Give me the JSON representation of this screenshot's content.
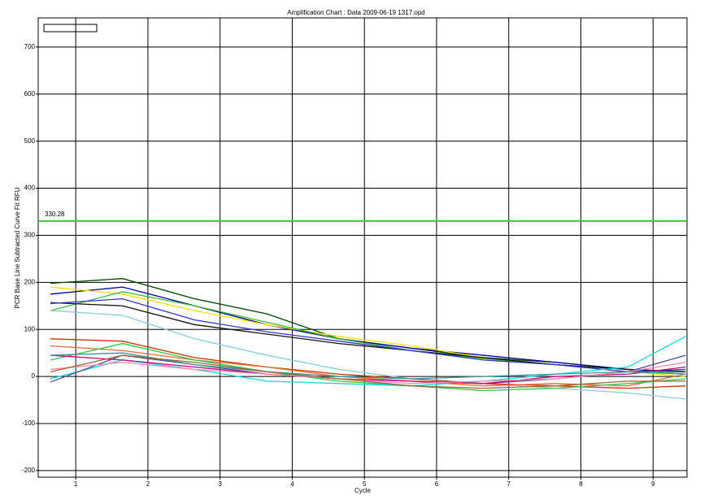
{
  "chart_data": {
    "type": "line",
    "title": "Amplification Chart : Data 2009-06-19 1317.opd",
    "x_label": "Cycle",
    "y_label": "PCR Base Line Subtracted Curve Fit RFU",
    "x": [
      0.65,
      1.65,
      2.65,
      3.65,
      4.65,
      5.65,
      6.65,
      7.65,
      8.65,
      9.45
    ],
    "xlim": [
      0.48,
      9.47
    ],
    "ylim": [
      -214,
      762
    ],
    "xticks": [
      1,
      2,
      3,
      4,
      5,
      6,
      7,
      8,
      9
    ],
    "yticks": [
      -200,
      -100,
      0,
      100,
      200,
      300,
      400,
      500,
      600,
      700
    ],
    "grid": true,
    "grid_color": "#000000",
    "threshold": 330.28,
    "threshold_color": "#33cc33",
    "series": [
      {
        "color": "#004400",
        "values": [
          198,
          208,
          165,
          133,
          80,
          60,
          40,
          30,
          15,
          5
        ]
      },
      {
        "color": "#000099",
        "values": [
          175,
          190,
          150,
          110,
          80,
          60,
          45,
          30,
          15,
          10
        ]
      },
      {
        "color": "#ffdd00",
        "values": [
          190,
          175,
          140,
          110,
          85,
          65,
          40,
          25,
          10,
          0
        ]
      },
      {
        "color": "#33bb33",
        "values": [
          140,
          180,
          150,
          115,
          80,
          55,
          38,
          25,
          15,
          5
        ]
      },
      {
        "color": "#111111",
        "values": [
          157,
          150,
          110,
          90,
          70,
          55,
          40,
          25,
          15,
          10
        ]
      },
      {
        "color": "#3333cc",
        "values": [
          155,
          165,
          120,
          95,
          75,
          55,
          35,
          25,
          10,
          15
        ]
      },
      {
        "color": "#88ccdd",
        "values": [
          140,
          130,
          80,
          45,
          15,
          -5,
          -15,
          -25,
          -35,
          -48
        ]
      },
      {
        "color": "#cc3300",
        "values": [
          80,
          75,
          40,
          20,
          5,
          -5,
          -15,
          -20,
          -25,
          -20
        ]
      },
      {
        "color": "#ee6633",
        "values": [
          65,
          55,
          35,
          20,
          0,
          -10,
          -20,
          -15,
          -20,
          5
        ]
      },
      {
        "color": "#22cc44",
        "values": [
          35,
          70,
          35,
          10,
          -10,
          -20,
          -30,
          -25,
          -15,
          -5
        ]
      },
      {
        "color": "#00dddd",
        "values": [
          -5,
          35,
          15,
          -10,
          -15,
          -20,
          -10,
          5,
          20,
          85
        ]
      },
      {
        "color": "#554499",
        "values": [
          -12,
          45,
          25,
          5,
          -5,
          -10,
          -15,
          -5,
          10,
          45
        ]
      },
      {
        "color": "#cc0077",
        "values": [
          45,
          35,
          20,
          5,
          -5,
          -10,
          -15,
          0,
          5,
          20
        ]
      },
      {
        "color": "#ff88aa",
        "values": [
          15,
          30,
          15,
          5,
          -5,
          -15,
          -10,
          -5,
          10,
          30
        ]
      },
      {
        "color": "#339999",
        "values": [
          45,
          50,
          25,
          10,
          0,
          -5,
          0,
          5,
          10,
          5
        ]
      },
      {
        "color": "#996633",
        "values": [
          10,
          45,
          30,
          10,
          -5,
          -20,
          -25,
          -20,
          -10,
          -10
        ]
      }
    ]
  }
}
